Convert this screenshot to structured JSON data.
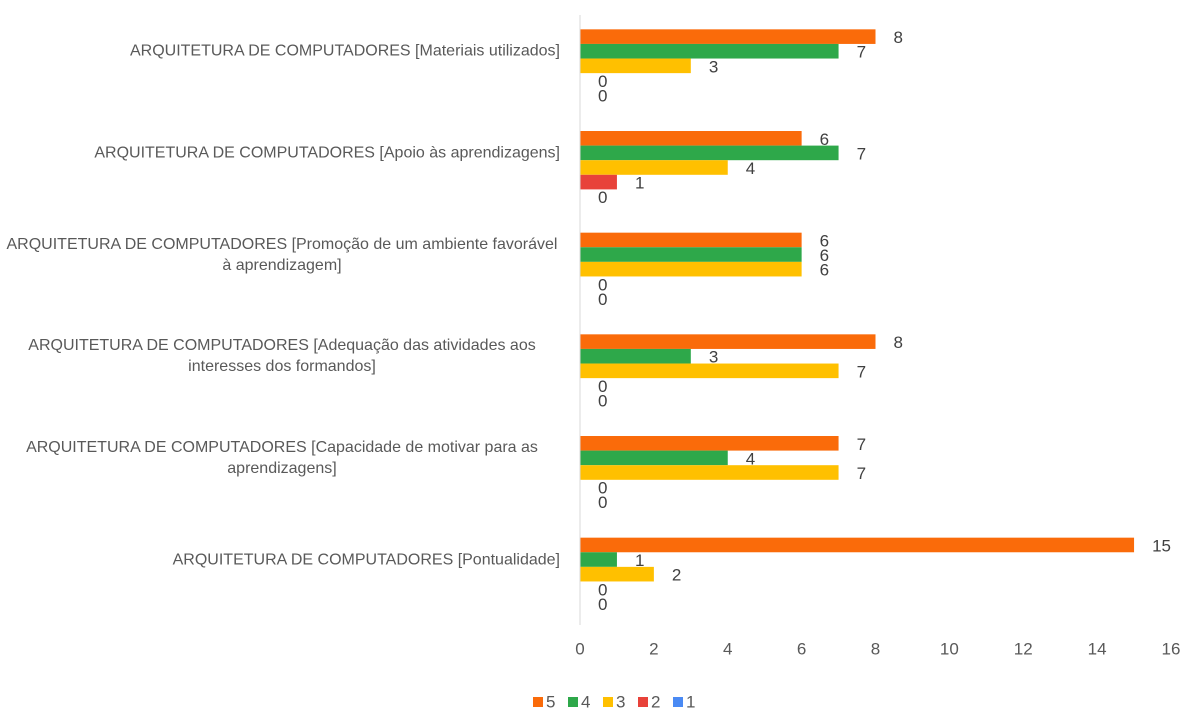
{
  "chart_data": {
    "type": "hbar",
    "categories": [
      "ARQUITETURA DE COMPUTADORES [Materiais utilizados]",
      "ARQUITETURA DE COMPUTADORES [Apoio às aprendizagens]",
      "ARQUITETURA DE COMPUTADORES [Promoção de um ambiente favorável à aprendizagem]",
      "ARQUITETURA DE COMPUTADORES [Adequação das atividades aos interesses dos formandos]",
      "ARQUITETURA DE COMPUTADORES [Capacidade de motivar para as aprendizagens]",
      "ARQUITETURA DE COMPUTADORES [Pontualidade]"
    ],
    "series": [
      {
        "name": "5",
        "color": "#fa6b0a",
        "values": [
          8,
          6,
          6,
          8,
          7,
          15
        ]
      },
      {
        "name": "4",
        "color": "#2ea84a",
        "values": [
          7,
          7,
          6,
          3,
          4,
          1
        ]
      },
      {
        "name": "3",
        "color": "#ffc000",
        "values": [
          3,
          4,
          6,
          7,
          7,
          2
        ]
      },
      {
        "name": "2",
        "color": "#e8423a",
        "values": [
          0,
          1,
          0,
          0,
          0,
          0
        ]
      },
      {
        "name": "1",
        "color": "#4a8af4",
        "values": [
          0,
          0,
          0,
          0,
          0,
          0
        ]
      }
    ],
    "xlim": [
      0,
      16
    ],
    "xticks": [
      0,
      2,
      4,
      6,
      8,
      10,
      12,
      14,
      16
    ],
    "grid": false,
    "legend": "bottom"
  }
}
